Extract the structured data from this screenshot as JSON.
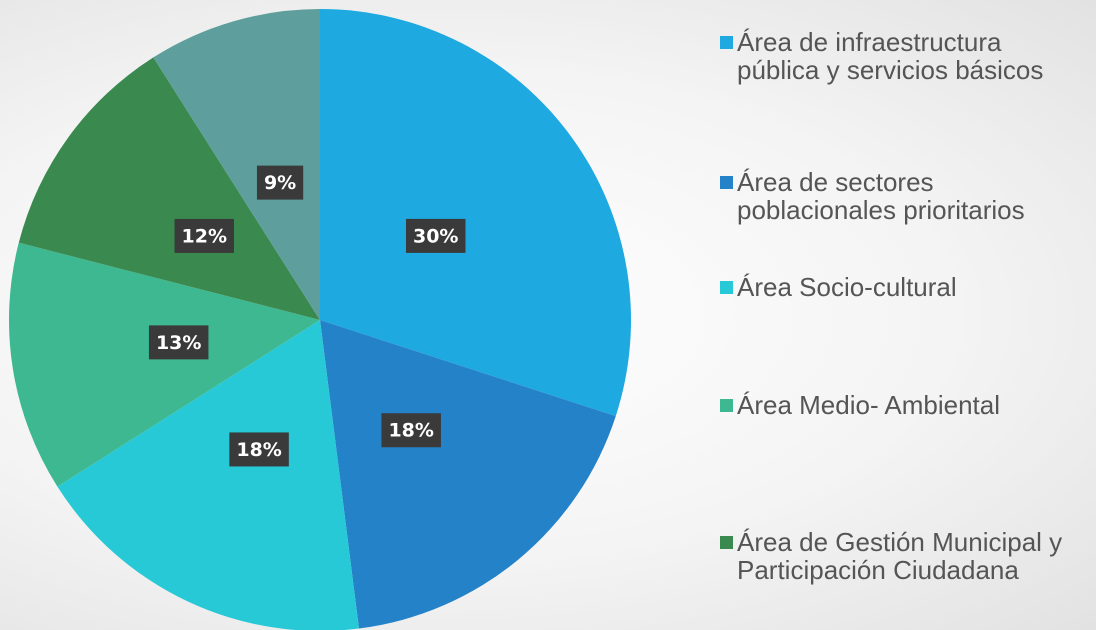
{
  "chart_data": {
    "type": "pie",
    "categories": [
      "Área de infraestructura pública y servicios básicos",
      "Área de sectores poblacionales prioritarios",
      "Área Socio-cultural",
      "Área Medio- Ambiental",
      "Área de Gestión Municipal y Participación Ciudadana",
      null
    ],
    "values": [
      30,
      18,
      18,
      13,
      12,
      9
    ],
    "value_labels": [
      "30%",
      "18%",
      "18%",
      "13%",
      "12%",
      "9%"
    ],
    "colors": [
      "#1fa9e1",
      "#2482c8",
      "#27c9d6",
      "#3db890",
      "#3a8a50",
      "#5e9e9c"
    ]
  }
}
